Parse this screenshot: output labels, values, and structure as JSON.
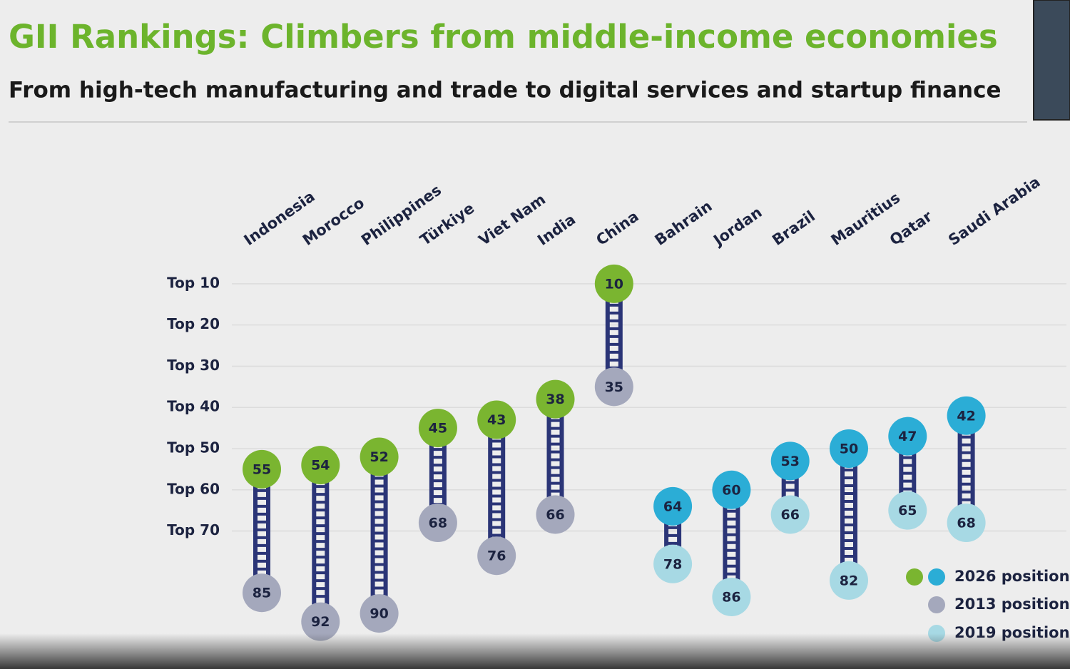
{
  "chart_data": {
    "type": "dumbbell",
    "title": "GII Rankings: Climbers from middle-income economies",
    "subtitle": "From high-tech manufacturing and trade to digital services and startup finance",
    "categories": [
      "Indonesia",
      "Morocco",
      "Philippines",
      "Türkiye",
      "Viet Nam",
      "India",
      "China",
      "Bahrain",
      "Jordan",
      "Brazil",
      "Mauritius",
      "Qatar",
      "Saudi Arabia"
    ],
    "series": [
      {
        "name": "2026 position",
        "colors": [
          "#7ab530",
          "#2badd6"
        ],
        "values": [
          55,
          54,
          52,
          45,
          43,
          38,
          10,
          64,
          60,
          53,
          50,
          47,
          42
        ]
      },
      {
        "name": "2013 position",
        "color": "#a4a8bc",
        "values": [
          85,
          92,
          90,
          68,
          76,
          66,
          35,
          null,
          null,
          null,
          null,
          null,
          null
        ]
      },
      {
        "name": "2019 position",
        "color": "#a7d9e4",
        "values": [
          null,
          null,
          null,
          null,
          null,
          null,
          null,
          78,
          86,
          66,
          82,
          65,
          68
        ]
      }
    ],
    "ladder_color": "#2b3577",
    "ylim": [
      5,
      95
    ],
    "y_inverted": true,
    "yticks": [
      {
        "value": 10,
        "label": "Top 10"
      },
      {
        "value": 20,
        "label": "Top 20"
      },
      {
        "value": 30,
        "label": "Top 30"
      },
      {
        "value": 40,
        "label": "Top 40"
      },
      {
        "value": 50,
        "label": "Top 50"
      },
      {
        "value": 60,
        "label": "Top 60"
      },
      {
        "value": 70,
        "label": "Top 70"
      }
    ],
    "grid": true,
    "legend": "lower right"
  }
}
